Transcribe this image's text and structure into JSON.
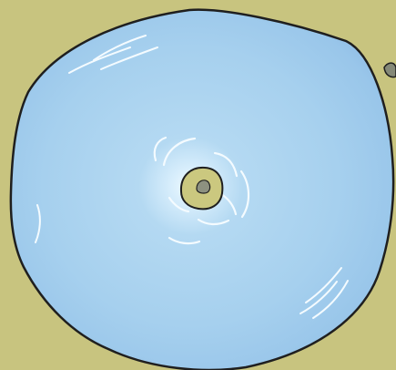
{
  "scene": {
    "colors": {
      "ground": "#c8c47f",
      "water": "#a7d1ee",
      "water_center": "#e8f6ff",
      "water_edge": "#8fbde6",
      "outline": "#1f1f1f",
      "island": "#c9c67f",
      "rock": "#8d9180",
      "highlight": "#f4fbff"
    }
  }
}
